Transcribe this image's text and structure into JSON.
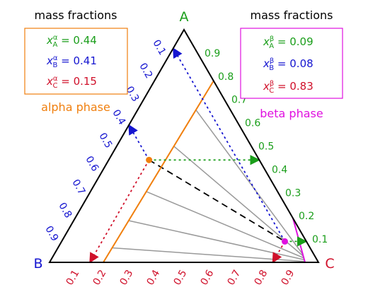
{
  "corners": {
    "A": "A",
    "B": "B",
    "C": "C"
  },
  "colors": {
    "A": "#1a9e1a",
    "B": "#1515d0",
    "C": "#d0102a",
    "alpha": "#f07f0e",
    "beta": "#e010e0",
    "tie_line": "#999999",
    "boundary": "#f07f0e",
    "triangle": "#000000"
  },
  "ticks": {
    "A": [
      "0.9",
      "0.8",
      "0.7",
      "0.6",
      "0.5",
      "0.4",
      "0.3",
      "0.2",
      "0.1"
    ],
    "B": [
      "0.1",
      "0.2",
      "0.3",
      "0.4",
      "0.5",
      "0.6",
      "0.7",
      "0.8",
      "0.9"
    ],
    "C": [
      "0.1",
      "0.2",
      "0.3",
      "0.4",
      "0.5",
      "0.6",
      "0.7",
      "0.8",
      "0.9"
    ]
  },
  "alpha_box": {
    "title": "mass fractions",
    "phase_label": "alpha phase",
    "xA": {
      "sym": "x",
      "sup": "α",
      "sub": "A",
      "text": " = 0.44",
      "value": 0.44
    },
    "xB": {
      "sym": "x",
      "sup": "α",
      "sub": "B",
      "text": " = 0.41",
      "value": 0.41
    },
    "xC": {
      "sym": "x",
      "sup": "α",
      "sub": "C",
      "text": " = 0.15",
      "value": 0.15
    }
  },
  "beta_box": {
    "title": "mass fractions",
    "phase_label": "beta phase",
    "xA": {
      "sym": "x",
      "sup": "β",
      "sub": "A",
      "text": " = 0.09",
      "value": 0.09
    },
    "xB": {
      "sym": "x",
      "sup": "β",
      "sub": "B",
      "text": " = 0.08",
      "value": 0.08
    },
    "xC": {
      "sym": "x",
      "sup": "β",
      "sub": "C",
      "text": " = 0.83",
      "value": 0.83
    }
  },
  "alpha_point": {
    "A": 0.44,
    "B": 0.41,
    "C": 0.15
  },
  "beta_point": {
    "A": 0.09,
    "B": 0.08,
    "C": 0.83
  },
  "alpha_boundary": [
    {
      "A": 0.0,
      "B": 0.8,
      "C": 0.2
    },
    {
      "A": 0.78,
      "B": 0.0,
      "C": 0.22
    }
  ],
  "beta_boundary": [
    {
      "A": 0.0,
      "B": 0.05,
      "C": 0.95
    },
    {
      "A": 0.19,
      "B": 0.0,
      "C": 0.81
    }
  ],
  "tie_lines": [
    {
      "alpha": 0.08,
      "beta": 0.02
    },
    {
      "alpha": 0.23,
      "beta": 0.06
    },
    {
      "alpha": 0.39,
      "beta": 0.1
    },
    {
      "alpha": 0.64,
      "beta": 0.14
    },
    {
      "alpha": 0.84,
      "beta": 0.18
    }
  ]
}
